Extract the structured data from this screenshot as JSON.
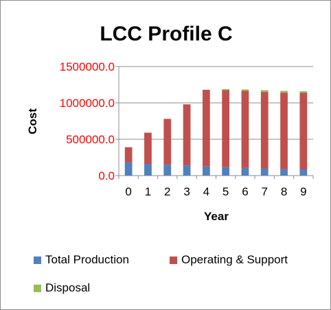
{
  "chart_data": {
    "type": "bar",
    "stacked": true,
    "title": "LCC Profile C",
    "xlabel": "Year",
    "ylabel": "Cost",
    "ylim": [
      0,
      1500000
    ],
    "yticks": [
      "0.0",
      "500000.0",
      "1000000.0",
      "1500000.0"
    ],
    "ytick_values": [
      0,
      500000,
      1000000,
      1500000
    ],
    "categories": [
      "0",
      "1",
      "2",
      "3",
      "4",
      "5",
      "6",
      "7",
      "8",
      "9"
    ],
    "series": [
      {
        "name": "Total Production",
        "color": "#4f81bd",
        "values": [
          180000,
          160000,
          150000,
          140000,
          125000,
          115000,
          105000,
          95000,
          90000,
          85000
        ]
      },
      {
        "name": "Operating & Support",
        "color": "#c0504d",
        "values": [
          210000,
          430000,
          630000,
          840000,
          1055000,
          1060000,
          1060000,
          1055000,
          1050000,
          1055000
        ]
      },
      {
        "name": "Disposal",
        "color": "#9bbb59",
        "values": [
          0,
          0,
          0,
          0,
          0,
          15000,
          20000,
          25000,
          25000,
          20000
        ]
      }
    ],
    "grid": true,
    "legend_position": "bottom",
    "ytick_color": "#ff0000"
  }
}
